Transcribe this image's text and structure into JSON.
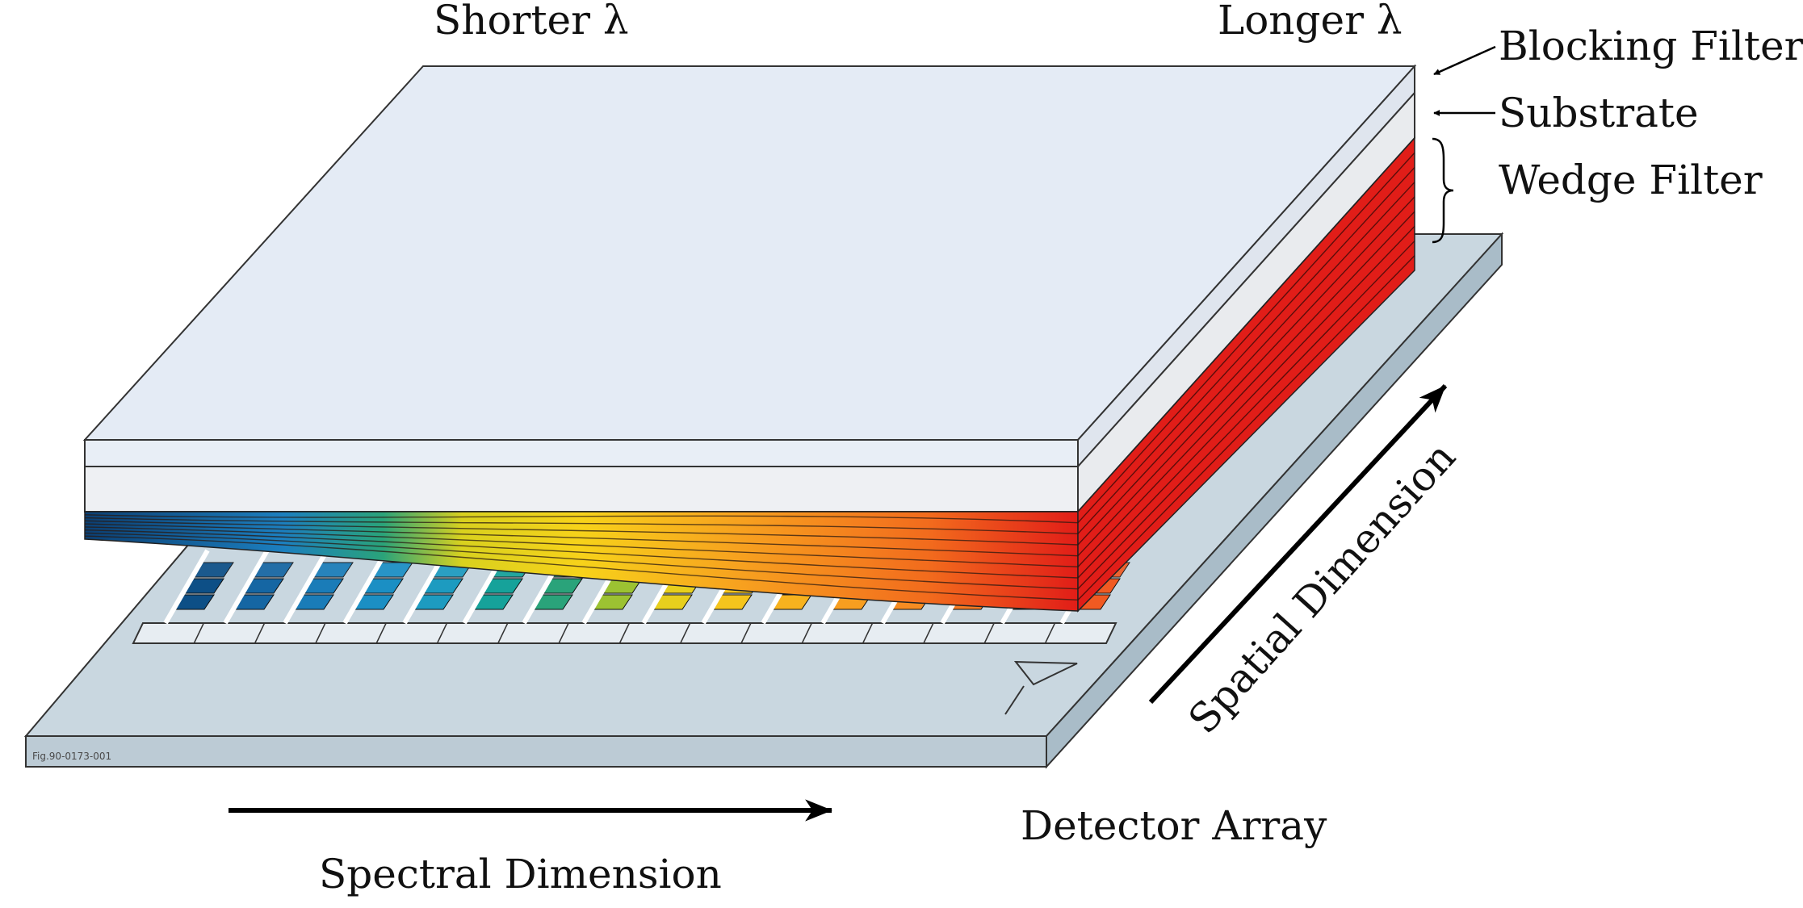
{
  "labels": {
    "shorter": "Shorter λ",
    "longer": "Longer λ",
    "blocking_filter": "Blocking Filter",
    "substrate": "Substrate",
    "wedge_filter": "Wedge Filter",
    "spatial_dimension": "Spatial Dimension",
    "detector_array": "Detector Array",
    "spectral_dimension": "Spectral Dimension",
    "figure_id": "Fig.90-0173-001"
  },
  "colors": {
    "detector_plate": "#c7d6df",
    "top_face": "#e4ebf5",
    "layer_side": "#eef0f3",
    "wedge_blue": "#0b4f8a",
    "wedge_green": "#2aa37a",
    "wedge_yellow": "#f4d21c",
    "wedge_orange": "#f7941d",
    "wedge_red": "#e11d18",
    "outline": "#333333"
  }
}
